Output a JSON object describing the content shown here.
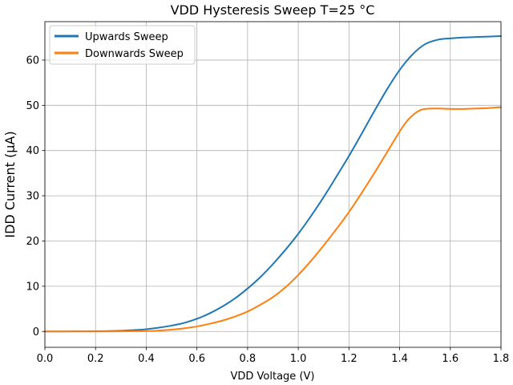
{
  "chart_data": {
    "type": "line",
    "title": "VDD Hysteresis Sweep T=25 °C",
    "xlabel": "VDD Voltage (V)",
    "ylabel": "IDD Current (µA)",
    "xlim": [
      0.0,
      1.8
    ],
    "ylim": [
      -3.5,
      68.5
    ],
    "xticks": [
      0.0,
      0.2,
      0.4,
      0.6,
      0.8,
      1.0,
      1.2,
      1.4,
      1.6,
      1.8
    ],
    "xtick_labels": [
      "0.0",
      "0.2",
      "0.4",
      "0.6",
      "0.8",
      "1.0",
      "1.2",
      "1.4",
      "1.6",
      "1.8"
    ],
    "yticks": [
      0,
      10,
      20,
      30,
      40,
      50,
      60
    ],
    "ytick_labels": [
      "0",
      "10",
      "20",
      "30",
      "40",
      "50",
      "60"
    ],
    "grid": true,
    "legend_position": "top-left",
    "series": [
      {
        "name": "Upwards Sweep",
        "color": "#1f77b4",
        "x": [
          0.0,
          0.1,
          0.2,
          0.3,
          0.35,
          0.4,
          0.45,
          0.5,
          0.55,
          0.6,
          0.65,
          0.7,
          0.75,
          0.8,
          0.85,
          0.9,
          0.95,
          1.0,
          1.05,
          1.1,
          1.15,
          1.2,
          1.25,
          1.3,
          1.35,
          1.4,
          1.45,
          1.5,
          1.55,
          1.6,
          1.65,
          1.7,
          1.75,
          1.8
        ],
        "y": [
          0.0,
          0.02,
          0.05,
          0.15,
          0.3,
          0.5,
          0.85,
          1.3,
          1.9,
          2.8,
          4.0,
          5.5,
          7.3,
          9.5,
          12.0,
          14.9,
          18.1,
          21.6,
          25.5,
          29.7,
          34.2,
          38.8,
          43.7,
          48.7,
          53.5,
          57.8,
          61.2,
          63.5,
          64.5,
          64.8,
          65.0,
          65.1,
          65.2,
          65.3
        ]
      },
      {
        "name": "Downwards Sweep",
        "color": "#ff7f0e",
        "x": [
          0.0,
          0.2,
          0.4,
          0.45,
          0.5,
          0.55,
          0.6,
          0.65,
          0.7,
          0.75,
          0.8,
          0.85,
          0.9,
          0.95,
          1.0,
          1.05,
          1.1,
          1.15,
          1.2,
          1.25,
          1.3,
          1.35,
          1.4,
          1.43,
          1.46,
          1.48,
          1.5,
          1.55,
          1.6,
          1.65,
          1.7,
          1.75,
          1.8
        ],
        "y": [
          0.0,
          0.0,
          0.1,
          0.2,
          0.4,
          0.7,
          1.1,
          1.7,
          2.4,
          3.3,
          4.4,
          5.9,
          7.6,
          9.8,
          12.5,
          15.6,
          19.0,
          22.6,
          26.4,
          30.6,
          35.0,
          39.6,
          44.2,
          46.6,
          48.2,
          48.9,
          49.2,
          49.3,
          49.2,
          49.2,
          49.3,
          49.4,
          49.6
        ]
      }
    ]
  }
}
